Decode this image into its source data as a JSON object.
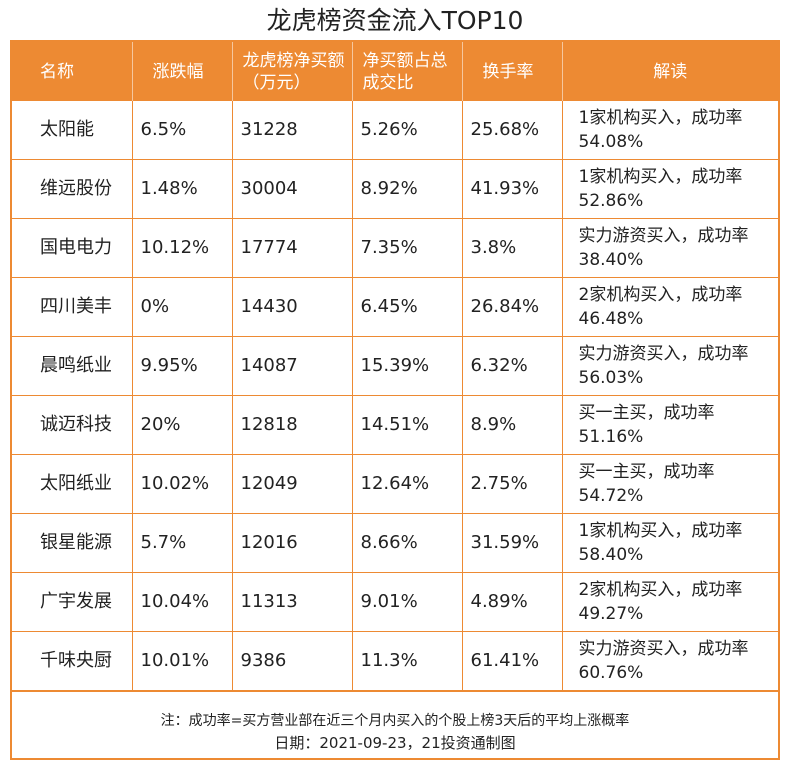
{
  "title": "龙虎榜资金流入TOP10",
  "headers": {
    "name": "名称",
    "change": "涨跌幅",
    "net_buy": "龙虎榜净买额（万元）",
    "ratio": "净买额占总成交比",
    "turnover": "换手率",
    "reading": "解读"
  },
  "rows": [
    {
      "name": "太阳能",
      "change": "6.5%",
      "net_buy": "31228",
      "ratio": "5.26%",
      "turnover": "25.68%",
      "reading": "1家机构买入，成功率54.08%"
    },
    {
      "name": "维远股份",
      "change": "1.48%",
      "net_buy": "30004",
      "ratio": "8.92%",
      "turnover": "41.93%",
      "reading": "1家机构买入，成功率52.86%"
    },
    {
      "name": "国电电力",
      "change": "10.12%",
      "net_buy": "17774",
      "ratio": "7.35%",
      "turnover": "3.8%",
      "reading": "实力游资买入，成功率38.40%"
    },
    {
      "name": "四川美丰",
      "change": "0%",
      "net_buy": "14430",
      "ratio": "6.45%",
      "turnover": "26.84%",
      "reading": "2家机构买入，成功率46.48%"
    },
    {
      "name": "晨鸣纸业",
      "change": "9.95%",
      "net_buy": "14087",
      "ratio": "15.39%",
      "turnover": "6.32%",
      "reading": "实力游资买入，成功率56.03%"
    },
    {
      "name": "诚迈科技",
      "change": "20%",
      "net_buy": "12818",
      "ratio": "14.51%",
      "turnover": "8.9%",
      "reading": "买一主买，成功率51.16%"
    },
    {
      "name": "太阳纸业",
      "change": "10.02%",
      "net_buy": "12049",
      "ratio": "12.64%",
      "turnover": "2.75%",
      "reading": "买一主买，成功率54.72%"
    },
    {
      "name": "银星能源",
      "change": "5.7%",
      "net_buy": "12016",
      "ratio": "8.66%",
      "turnover": "31.59%",
      "reading": "1家机构买入，成功率58.40%"
    },
    {
      "name": "广宇发展",
      "change": "10.04%",
      "net_buy": "11313",
      "ratio": "9.01%",
      "turnover": "4.89%",
      "reading": "2家机构买入，成功率49.27%"
    },
    {
      "name": "千味央厨",
      "change": "10.01%",
      "net_buy": "9386",
      "ratio": "11.3%",
      "turnover": "61.41%",
      "reading": "实力游资买入，成功率60.76%"
    }
  ],
  "footnote": "注：成功率=买方营业部在近三个月内买入的个股上榜3天后的平均上涨概率",
  "date_line": "日期：2021-09-23，21投资通制图"
}
